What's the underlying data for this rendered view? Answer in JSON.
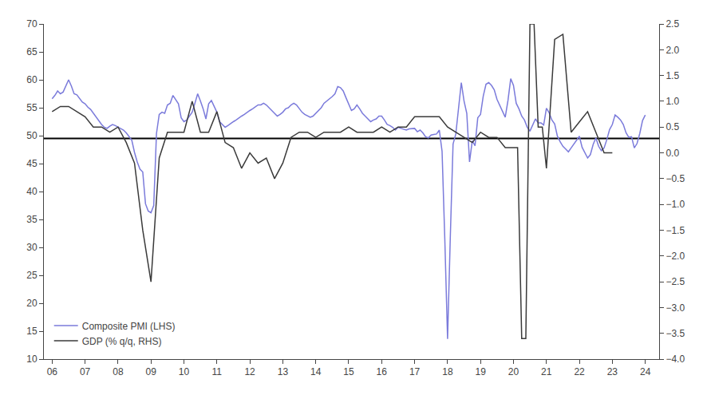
{
  "chart_data": {
    "type": "line",
    "xlim": [
      2005.75,
      2024.42
    ],
    "xticks": [
      {
        "value": 2006,
        "label": "06"
      },
      {
        "value": 2007,
        "label": "07"
      },
      {
        "value": 2008,
        "label": "08"
      },
      {
        "value": 2009,
        "label": "09"
      },
      {
        "value": 2010,
        "label": "10"
      },
      {
        "value": 2011,
        "label": "11"
      },
      {
        "value": 2012,
        "label": "12"
      },
      {
        "value": 2013,
        "label": "13"
      },
      {
        "value": 2014,
        "label": "14"
      },
      {
        "value": 2015,
        "label": "15"
      },
      {
        "value": 2016,
        "label": "16"
      },
      {
        "value": 2017,
        "label": "17"
      },
      {
        "value": 2018,
        "label": "18"
      },
      {
        "value": 2019,
        "label": "19"
      },
      {
        "value": 2020,
        "label": "20"
      },
      {
        "value": 2021,
        "label": "21"
      },
      {
        "value": 2022,
        "label": "22"
      },
      {
        "value": 2023,
        "label": "23"
      },
      {
        "value": 2024,
        "label": "24"
      }
    ],
    "ylim": [
      10,
      70
    ],
    "yticks": [
      10,
      15,
      20,
      25,
      30,
      35,
      40,
      45,
      50,
      55,
      60,
      65,
      70
    ],
    "y2lim": [
      -4.0,
      2.5
    ],
    "y2ticks": [
      {
        "value": -4.0,
        "label": "−4.0"
      },
      {
        "value": -3.5,
        "label": "−3.5"
      },
      {
        "value": -3.0,
        "label": "−3.0"
      },
      {
        "value": -2.5,
        "label": "−2.5"
      },
      {
        "value": -2.0,
        "label": "−2.0"
      },
      {
        "value": -1.5,
        "label": "−1.5"
      },
      {
        "value": -1.0,
        "label": "−1.0"
      },
      {
        "value": -0.5,
        "label": "−0.5"
      },
      {
        "value": 0.0,
        "label": "0.0"
      },
      0.5,
      {
        "value": 1.0,
        "label": "1.0"
      },
      1.5,
      {
        "value": 2.0,
        "label": "2.0"
      },
      2.5
    ],
    "grid": false,
    "legend": "lower left",
    "series": [
      {
        "name": "Composite PMI (LHS)",
        "color": "#7b7bdb",
        "x": [
          2006.0,
          2006.0833,
          2006.1667,
          2006.25,
          2006.3333,
          2006.4167,
          2006.5,
          2006.5833,
          2006.6667,
          2006.75,
          2006.8333,
          2006.9167,
          2007.0,
          2007.0833,
          2007.1667,
          2007.25,
          2007.3333,
          2007.4167,
          2007.5,
          2007.5833,
          2007.6667,
          2007.75,
          2007.8333,
          2007.9167,
          2008.0,
          2008.0833,
          2008.1667,
          2008.25,
          2008.3333,
          2008.4167,
          2008.5,
          2008.5833,
          2008.6667,
          2008.75,
          2008.8333,
          2008.9167,
          2009.0,
          2009.0833,
          2009.1667,
          2009.25,
          2009.3333,
          2009.4167,
          2009.5,
          2009.5833,
          2009.6667,
          2009.75,
          2009.8333,
          2009.9167,
          2010.0,
          2010.0833,
          2010.1667,
          2010.25,
          2010.3333,
          2010.4167,
          2010.5,
          2010.5833,
          2010.6667,
          2010.75,
          2010.8333,
          2010.9167,
          2011.0,
          2011.0833,
          2011.1667,
          2011.25,
          2011.3333,
          2011.4167,
          2011.5,
          2011.5833,
          2011.6667,
          2011.75,
          2011.8333,
          2011.9167,
          2012.0,
          2012.0833,
          2012.1667,
          2012.25,
          2012.3333,
          2012.4167,
          2012.5,
          2012.5833,
          2012.6667,
          2012.75,
          2012.8333,
          2012.9167,
          2013.0,
          2013.0833,
          2013.1667,
          2013.25,
          2013.3333,
          2013.4167,
          2013.5,
          2013.5833,
          2013.6667,
          2013.75,
          2013.8333,
          2013.9167,
          2014.0,
          2014.0833,
          2014.1667,
          2014.25,
          2014.3333,
          2014.4167,
          2014.5,
          2014.5833,
          2014.6667,
          2014.75,
          2014.8333,
          2014.9167,
          2015.0,
          2015.0833,
          2015.1667,
          2015.25,
          2015.3333,
          2015.4167,
          2015.5,
          2015.5833,
          2015.6667,
          2015.75,
          2015.8333,
          2015.9167,
          2016.0,
          2016.0833,
          2016.1667,
          2016.25,
          2016.3333,
          2016.4167,
          2016.5,
          2016.5833,
          2016.6667,
          2016.75,
          2016.8333,
          2016.9167,
          2017.0,
          2017.0833,
          2017.1667,
          2017.25,
          2017.3333,
          2017.4167,
          2017.5,
          2017.5833,
          2017.6667,
          2017.75,
          2017.8333,
          2017.9167,
          2018.0,
          2018.0833,
          2018.1667,
          2018.25,
          2018.3333,
          2018.4167,
          2018.5,
          2018.5833,
          2018.6667,
          2018.75,
          2018.8333,
          2018.9167,
          2019.0,
          2019.0833,
          2019.1667,
          2019.25,
          2019.3333,
          2019.4167,
          2019.5,
          2019.5833,
          2019.6667,
          2019.75,
          2019.8333,
          2019.9167,
          2020.0,
          2020.0833,
          2020.1667,
          2020.25,
          2020.3333,
          2020.4167,
          2020.5,
          2020.5833,
          2020.6667,
          2020.75,
          2020.8333,
          2020.9167,
          2021.0,
          2021.0833,
          2021.1667,
          2021.25,
          2021.3333,
          2021.4167,
          2021.5,
          2021.5833,
          2021.6667,
          2021.75,
          2021.8333,
          2021.9167,
          2022.0,
          2022.0833,
          2022.1667,
          2022.25,
          2022.3333,
          2022.4167,
          2022.5,
          2022.5833,
          2022.6667,
          2022.75,
          2022.8333,
          2022.9167,
          2023.0,
          2023.0833,
          2023.1667,
          2023.25,
          2023.3333,
          2023.4167,
          2023.5,
          2023.5833,
          2023.6667,
          2023.75,
          2023.8333,
          2023.9167,
          2024.0
        ],
        "values": [
          56.6,
          57.2,
          58.0,
          57.5,
          57.8,
          58.8,
          60.0,
          58.9,
          57.5,
          57.3,
          56.7,
          56.0,
          55.7,
          55.1,
          54.7,
          54.0,
          53.3,
          52.7,
          52.0,
          51.5,
          51.3,
          51.7,
          52.0,
          51.8,
          51.5,
          51.3,
          51.0,
          50.5,
          49.9,
          49.2,
          47.0,
          45.3,
          44.0,
          43.5,
          37.8,
          36.5,
          36.2,
          37.5,
          50.4,
          53.8,
          54.2,
          54.0,
          55.5,
          55.8,
          57.2,
          56.5,
          55.7,
          53.2,
          52.5,
          52.8,
          53.5,
          54.2,
          55.8,
          57.5,
          56.2,
          54.8,
          53.0,
          55.7,
          56.3,
          55.3,
          54.2,
          52.5,
          52.0,
          51.5,
          51.8,
          52.2,
          52.5,
          52.8,
          53.2,
          53.5,
          53.8,
          54.2,
          54.5,
          54.8,
          55.2,
          55.5,
          55.5,
          55.8,
          55.5,
          55.0,
          54.5,
          54.0,
          53.5,
          53.8,
          54.2,
          54.8,
          55.0,
          55.5,
          55.8,
          55.5,
          54.8,
          54.2,
          53.8,
          53.5,
          53.3,
          53.5,
          54.0,
          54.5,
          55.0,
          55.8,
          56.2,
          56.5,
          57.0,
          57.5,
          58.8,
          58.6,
          58.0,
          56.8,
          55.5,
          54.5,
          54.8,
          55.5,
          54.8,
          54.0,
          53.5,
          53.0,
          52.5,
          52.8,
          53.0,
          53.5,
          53.5,
          52.8,
          52.0,
          51.8,
          51.5,
          51.0,
          51.5,
          51.3,
          51.2,
          51.0,
          51.2,
          51.3,
          51.3,
          50.7,
          51.0,
          50.5,
          49.8,
          49.6,
          50.1,
          50.2,
          50.3,
          51.0,
          47.2,
          31.4,
          13.6,
          31.9,
          48.5,
          50.3,
          54.9,
          59.5,
          56.2,
          54.0,
          45.3,
          49.1,
          48.2,
          53.2,
          53.8,
          57.1,
          59.2,
          59.5,
          59.0,
          58.2,
          56.5,
          55.5,
          54.3,
          53.3,
          56.3,
          60.2,
          59.0,
          55.8,
          54.8,
          53.5,
          52.8,
          51.5,
          50.8,
          52.0,
          53.0,
          52.3,
          52.3,
          51.9,
          54.9,
          54.1,
          52.8,
          52.1,
          49.9,
          48.9,
          48.1,
          47.6,
          47.1,
          47.8,
          48.5,
          49.2,
          49.9,
          47.9,
          46.9,
          46.0,
          46.6,
          48.4,
          49.6,
          48.1,
          47.3,
          47.8,
          49.3,
          51.1,
          52.0,
          53.7,
          53.3,
          52.8,
          52.0,
          50.5,
          49.7,
          49.8,
          47.8,
          48.6,
          50.4,
          52.7,
          53.7
        ]
      },
      {
        "name": "GDP (% q/q, RHS)",
        "color": "#3a3a3a",
        "axis": "y2",
        "x": [
          2006.0,
          2006.25,
          2006.5,
          2006.75,
          2007.0,
          2007.25,
          2007.5,
          2007.75,
          2008.0,
          2008.25,
          2008.5,
          2008.75,
          2009.0,
          2009.25,
          2009.5,
          2009.75,
          2010.0,
          2010.25,
          2010.5,
          2010.75,
          2011.0,
          2011.25,
          2011.5,
          2011.75,
          2012.0,
          2012.25,
          2012.5,
          2012.75,
          2013.0,
          2013.25,
          2013.5,
          2013.75,
          2014.0,
          2014.25,
          2014.5,
          2014.75,
          2015.0,
          2015.25,
          2015.5,
          2015.75,
          2016.0,
          2016.25,
          2016.5,
          2016.75,
          2017.0,
          2017.25,
          2017.5,
          2017.75,
          2018.0,
          2018.25,
          2018.5,
          2018.75,
          2019.0,
          2019.25,
          2019.5,
          2019.75,
          2020.0,
          2020.125,
          2020.25,
          2020.375,
          2020.5,
          2020.625,
          2020.75,
          2020.875,
          2021.0,
          2021.25,
          2021.5,
          2021.75,
          2022.0,
          2022.25,
          2022.5,
          2022.75,
          2023.0
        ],
        "values": [
          0.8,
          0.9,
          0.9,
          0.8,
          0.7,
          0.5,
          0.5,
          0.4,
          0.5,
          0.2,
          -0.2,
          -1.5,
          -2.5,
          -0.1,
          0.4,
          0.4,
          0.4,
          1.0,
          0.4,
          0.4,
          0.8,
          0.2,
          0.1,
          -0.3,
          0.0,
          -0.2,
          -0.1,
          -0.5,
          -0.2,
          0.3,
          0.4,
          0.4,
          0.3,
          0.4,
          0.4,
          0.4,
          0.5,
          0.4,
          0.4,
          0.4,
          0.5,
          0.4,
          0.5,
          0.5,
          0.7,
          0.7,
          0.7,
          0.7,
          0.5,
          0.4,
          0.3,
          0.2,
          0.4,
          0.3,
          0.3,
          0.1,
          0.1,
          0.1,
          -3.6,
          -3.6,
          2.5,
          2.5,
          0.5,
          0.5,
          -0.3,
          2.2,
          2.3,
          0.4,
          0.6,
          0.8,
          0.4,
          0.0,
          0.0
        ]
      },
      {
        "type": "hline",
        "color": "#000000",
        "values": [
          49.5
        ]
      }
    ]
  }
}
